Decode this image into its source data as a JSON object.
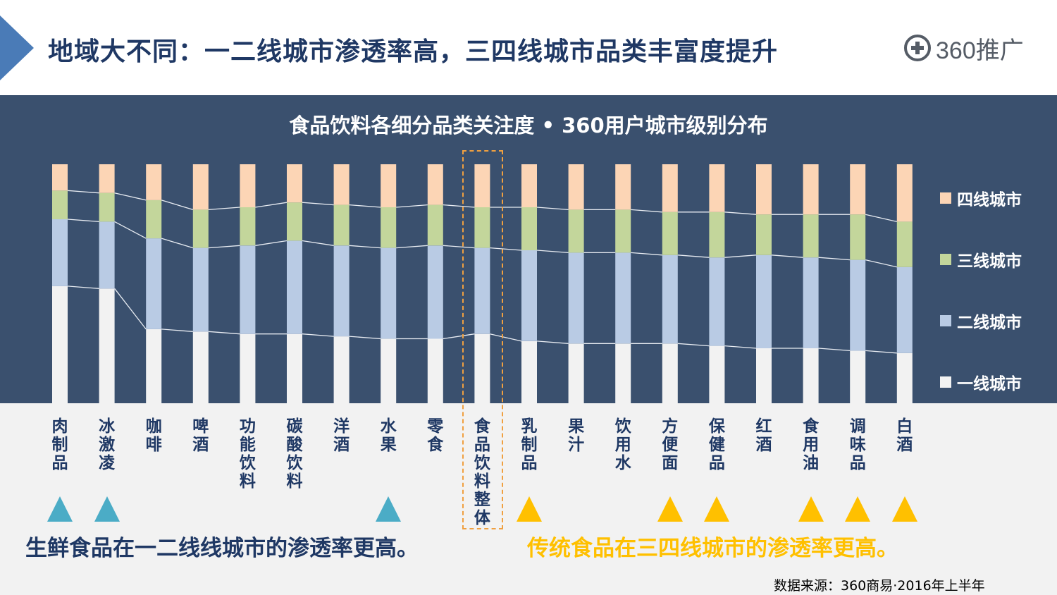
{
  "header": {
    "title": "地域大不同：一二线城市渗透率高，三四线城市品类丰富度提升",
    "logo_text": "360推广"
  },
  "chart_data": {
    "type": "bar",
    "stacked": true,
    "normalized": true,
    "title": "食品饮料各细分品类关注度 • 360用户城市级别分布",
    "xlabel": "",
    "ylabel": "",
    "ylim": [
      0,
      100
    ],
    "categories": [
      "肉制品",
      "冰激凌",
      "咖啡",
      "啤酒",
      "功能饮料",
      "碳酸饮料",
      "洋酒",
      "水果",
      "零食",
      "食品饮料整体",
      "乳制品",
      "果汁",
      "饮用水",
      "方便面",
      "保健品",
      "红酒",
      "食用油",
      "调味品",
      "白酒"
    ],
    "series": [
      {
        "name": "一线城市",
        "color": "#f2f2f2",
        "values": [
          49,
          48,
          31,
          30,
          29,
          29,
          28,
          27,
          27,
          29,
          26,
          25,
          25,
          25,
          24,
          23,
          23,
          22,
          21
        ]
      },
      {
        "name": "二线城市",
        "color": "#b9cbe4",
        "values": [
          28,
          28,
          38,
          35,
          37,
          39,
          38,
          38,
          39,
          36,
          38,
          38,
          38,
          37,
          37,
          39,
          38,
          38,
          36
        ]
      },
      {
        "name": "三线城市",
        "color": "#c3d69b",
        "values": [
          12,
          12,
          16,
          16,
          16,
          16,
          17,
          17,
          17,
          17,
          18,
          18,
          18,
          18,
          19,
          17,
          18,
          19,
          19
        ]
      },
      {
        "name": "四线城市",
        "color": "#fcd5b5",
        "values": [
          11,
          12,
          15,
          19,
          18,
          16,
          17,
          18,
          17,
          18,
          18,
          19,
          19,
          20,
          20,
          21,
          21,
          21,
          24
        ]
      }
    ],
    "legend_position": "right",
    "highlight_category": "食品饮料整体"
  },
  "legend_order": [
    "四线城市",
    "三线城市",
    "二线城市",
    "一线城市"
  ],
  "markers": {
    "teal_color": "#4bacc6",
    "gold_color": "#ffc000",
    "teal_categories": [
      "肉制品",
      "冰激凌",
      "水果"
    ],
    "gold_categories": [
      "乳制品",
      "方便面",
      "保健品",
      "食用油",
      "调味品",
      "白酒"
    ]
  },
  "notes": {
    "left": "生鲜食品在一二线线城市的渗透率更高。",
    "right": "传统食品在三四线城市的渗透率更高。"
  },
  "source": "数据来源：360商易·2016年上半年"
}
